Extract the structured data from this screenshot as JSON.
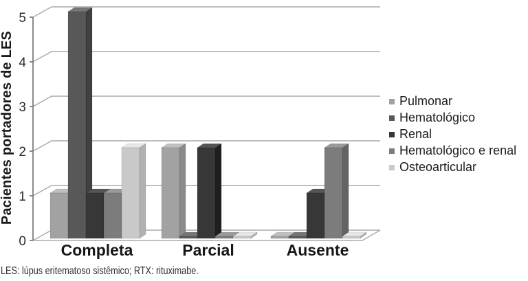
{
  "chart_data": {
    "type": "bar",
    "projection": "3d",
    "title": "",
    "xlabel": "",
    "ylabel": "Pacientes portadores de LES",
    "ylim": [
      0,
      5
    ],
    "yticks": [
      0,
      1,
      2,
      3,
      4,
      5
    ],
    "grid": true,
    "legend_position": "right",
    "categories": [
      "Completa",
      "Parcial",
      "Ausente"
    ],
    "series": [
      {
        "name": "Pulmonar",
        "color": "#a2a2a2",
        "values": [
          1,
          2,
          0
        ]
      },
      {
        "name": "Hematológico",
        "color": "#585858",
        "values": [
          5,
          0,
          0
        ]
      },
      {
        "name": "Renal",
        "color": "#373737",
        "values": [
          1,
          2,
          1
        ]
      },
      {
        "name": "Hematológico e renal",
        "color": "#7c7c7c",
        "values": [
          1,
          0,
          2
        ]
      },
      {
        "name": "Osteoarticular",
        "color": "#c9c9c9",
        "values": [
          2,
          0,
          0
        ]
      }
    ],
    "colors": {
      "gridline": "#a9a9a9",
      "axis": "#7d7d7d",
      "tick_label": "#2b2b2b",
      "category_label": "#161616"
    }
  },
  "caption": "LES: lúpus eritematoso sistêmico; RTX: rituximabe."
}
